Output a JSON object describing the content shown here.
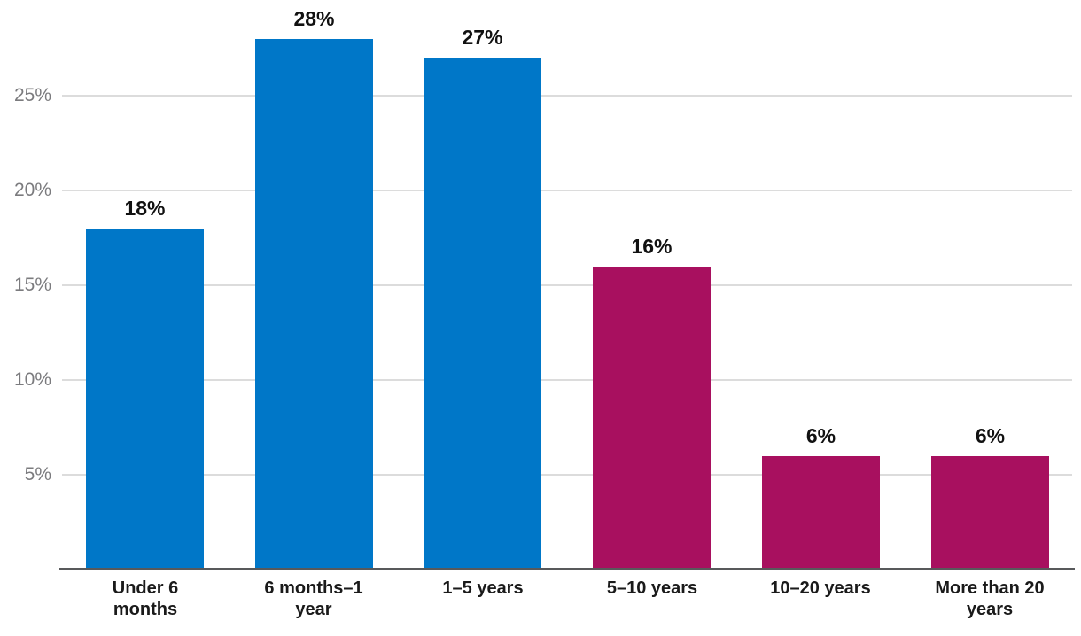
{
  "chart_data": {
    "type": "bar",
    "title": "",
    "xlabel": "",
    "ylabel": "",
    "categories": [
      "Under 6 months",
      "6 months–1 year",
      "1–5 years",
      "5–10 years",
      "10–20 years",
      "More than 20 years"
    ],
    "values": [
      18,
      28,
      27,
      16,
      6,
      6
    ],
    "value_labels": [
      "18%",
      "28%",
      "27%",
      "16%",
      "6%",
      "6%"
    ],
    "bar_colors": [
      "#0077C8",
      "#0077C8",
      "#0077C8",
      "#A8105F",
      "#A8105F",
      "#A8105F"
    ],
    "yticks": [
      5,
      10,
      15,
      20,
      25
    ],
    "ytick_labels": [
      "5%",
      "10%",
      "15%",
      "20%",
      "25%"
    ],
    "ylim": [
      0,
      30
    ],
    "grid": true,
    "legend_position": "none",
    "palette": {
      "bar_blue": "#0077C8",
      "bar_magenta": "#A8105F",
      "gridline": "#DCDCDC",
      "axis_line": "#58595B",
      "tick_label": "#7B7B7E",
      "value_label": "#111111",
      "category_label": "#1A1A1A",
      "background": "#FFFFFF"
    }
  }
}
